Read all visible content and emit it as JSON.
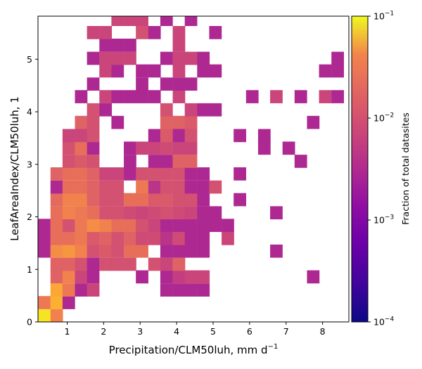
{
  "chart_data": {
    "type": "heatmap",
    "xlabel": "Precipitation/CLM50luh,  mm d",
    "xlabel_sup": "−1",
    "ylabel": "LeafAreaIndex/CLM50luh,  1",
    "xlim": [
      0.2,
      8.72
    ],
    "ylim": [
      0,
      5.82
    ],
    "bin_width": [
      0.335,
      0.245
    ],
    "x_ticks": [
      {
        "value": 1,
        "label": "1"
      },
      {
        "value": 2,
        "label": "2"
      },
      {
        "value": 3,
        "label": "3"
      },
      {
        "value": 4,
        "label": "4"
      },
      {
        "value": 5,
        "label": "5"
      },
      {
        "value": 6,
        "label": "6"
      },
      {
        "value": 7,
        "label": "7"
      },
      {
        "value": 8,
        "label": "8"
      }
    ],
    "y_ticks": [
      {
        "value": 0,
        "label": "0"
      },
      {
        "value": 1,
        "label": "1"
      },
      {
        "value": 2,
        "label": "2"
      },
      {
        "value": 3,
        "label": "3"
      },
      {
        "value": 4,
        "label": "4"
      },
      {
        "value": 5,
        "label": "5"
      }
    ],
    "colorbar": {
      "label": "Fraction of total datasites",
      "scale": "log",
      "range": [
        0.0001,
        0.1
      ],
      "colormap": "plasma",
      "ticks": [
        {
          "value": 0.0001,
          "base": "10",
          "exp": "−4"
        },
        {
          "value": 0.001,
          "base": "10",
          "exp": "−3"
        },
        {
          "value": 0.01,
          "base": "10",
          "exp": "−2"
        },
        {
          "value": 0.1,
          "base": "10",
          "exp": "−1"
        }
      ]
    },
    "cells": [
      {
        "x": 0.37,
        "y": 0.12,
        "v": 0.07
      },
      {
        "x": 0.71,
        "y": 0.12,
        "v": 0.012
      },
      {
        "x": 0.37,
        "y": 0.37,
        "v": 0.01
      },
      {
        "x": 0.71,
        "y": 0.37,
        "v": 0.03
      },
      {
        "x": 1.04,
        "y": 0.37,
        "v": 0.0015
      },
      {
        "x": 0.71,
        "y": 0.61,
        "v": 0.025
      },
      {
        "x": 1.04,
        "y": 0.61,
        "v": 0.01
      },
      {
        "x": 1.38,
        "y": 0.61,
        "v": 0.0015
      },
      {
        "x": 1.71,
        "y": 0.61,
        "v": 0.003
      },
      {
        "x": 3.72,
        "y": 0.61,
        "v": 0.0015
      },
      {
        "x": 4.06,
        "y": 0.61,
        "v": 0.0015
      },
      {
        "x": 4.39,
        "y": 0.61,
        "v": 0.0015
      },
      {
        "x": 4.73,
        "y": 0.61,
        "v": 0.0015
      },
      {
        "x": 0.71,
        "y": 0.86,
        "v": 0.006
      },
      {
        "x": 1.04,
        "y": 0.86,
        "v": 0.012
      },
      {
        "x": 1.38,
        "y": 0.86,
        "v": 0.003
      },
      {
        "x": 1.71,
        "y": 0.86,
        "v": 0.0015
      },
      {
        "x": 3.05,
        "y": 0.86,
        "v": 0.0015
      },
      {
        "x": 3.72,
        "y": 0.86,
        "v": 0.0015
      },
      {
        "x": 4.06,
        "y": 0.86,
        "v": 0.0025
      },
      {
        "x": 4.39,
        "y": 0.86,
        "v": 0.003
      },
      {
        "x": 4.73,
        "y": 0.86,
        "v": 0.003
      },
      {
        "x": 7.74,
        "y": 0.86,
        "v": 0.0015
      },
      {
        "x": 0.71,
        "y": 1.1,
        "v": 0.006
      },
      {
        "x": 1.04,
        "y": 1.1,
        "v": 0.006
      },
      {
        "x": 1.38,
        "y": 1.1,
        "v": 0.004
      },
      {
        "x": 1.71,
        "y": 1.1,
        "v": 0.0015
      },
      {
        "x": 2.05,
        "y": 1.1,
        "v": 0.004
      },
      {
        "x": 2.38,
        "y": 1.1,
        "v": 0.004
      },
      {
        "x": 2.72,
        "y": 1.1,
        "v": 0.004
      },
      {
        "x": 3.39,
        "y": 1.1,
        "v": 0.004
      },
      {
        "x": 3.72,
        "y": 1.1,
        "v": 0.003
      },
      {
        "x": 4.06,
        "y": 1.1,
        "v": 0.006
      },
      {
        "x": 0.37,
        "y": 1.35,
        "v": 0.0015
      },
      {
        "x": 0.71,
        "y": 1.35,
        "v": 0.015
      },
      {
        "x": 1.04,
        "y": 1.35,
        "v": 0.018
      },
      {
        "x": 1.38,
        "y": 1.35,
        "v": 0.012
      },
      {
        "x": 1.71,
        "y": 1.35,
        "v": 0.004
      },
      {
        "x": 2.05,
        "y": 1.35,
        "v": 0.005
      },
      {
        "x": 2.38,
        "y": 1.35,
        "v": 0.004
      },
      {
        "x": 2.72,
        "y": 1.35,
        "v": 0.008
      },
      {
        "x": 3.05,
        "y": 1.35,
        "v": 0.008
      },
      {
        "x": 3.72,
        "y": 1.35,
        "v": 0.0015
      },
      {
        "x": 4.06,
        "y": 1.35,
        "v": 0.0015
      },
      {
        "x": 4.39,
        "y": 1.35,
        "v": 0.0015
      },
      {
        "x": 4.73,
        "y": 1.35,
        "v": 0.0015
      },
      {
        "x": 6.73,
        "y": 1.35,
        "v": 0.0015
      },
      {
        "x": 0.37,
        "y": 1.59,
        "v": 0.0015
      },
      {
        "x": 0.71,
        "y": 1.59,
        "v": 0.008
      },
      {
        "x": 1.04,
        "y": 1.59,
        "v": 0.008
      },
      {
        "x": 1.38,
        "y": 1.59,
        "v": 0.01
      },
      {
        "x": 1.71,
        "y": 1.59,
        "v": 0.005
      },
      {
        "x": 2.05,
        "y": 1.59,
        "v": 0.006
      },
      {
        "x": 2.38,
        "y": 1.59,
        "v": 0.004
      },
      {
        "x": 2.72,
        "y": 1.59,
        "v": 0.006
      },
      {
        "x": 3.05,
        "y": 1.59,
        "v": 0.0035
      },
      {
        "x": 3.39,
        "y": 1.59,
        "v": 0.0035
      },
      {
        "x": 3.72,
        "y": 1.59,
        "v": 0.002
      },
      {
        "x": 4.06,
        "y": 1.59,
        "v": 0.0035
      },
      {
        "x": 4.39,
        "y": 1.59,
        "v": 0.0015
      },
      {
        "x": 4.73,
        "y": 1.59,
        "v": 0.0015
      },
      {
        "x": 5.4,
        "y": 1.59,
        "v": 0.003
      },
      {
        "x": 0.37,
        "y": 1.84,
        "v": 0.0015
      },
      {
        "x": 0.71,
        "y": 1.84,
        "v": 0.008
      },
      {
        "x": 1.04,
        "y": 1.84,
        "v": 0.004
      },
      {
        "x": 1.38,
        "y": 1.84,
        "v": 0.01
      },
      {
        "x": 1.71,
        "y": 1.84,
        "v": 0.015
      },
      {
        "x": 2.05,
        "y": 1.84,
        "v": 0.012
      },
      {
        "x": 2.38,
        "y": 1.84,
        "v": 0.008
      },
      {
        "x": 2.72,
        "y": 1.84,
        "v": 0.008
      },
      {
        "x": 3.05,
        "y": 1.84,
        "v": 0.004
      },
      {
        "x": 3.39,
        "y": 1.84,
        "v": 0.003
      },
      {
        "x": 3.72,
        "y": 1.84,
        "v": 0.0015
      },
      {
        "x": 4.06,
        "y": 1.84,
        "v": 0.0015
      },
      {
        "x": 4.39,
        "y": 1.84,
        "v": 0.0015
      },
      {
        "x": 4.73,
        "y": 1.84,
        "v": 0.0015
      },
      {
        "x": 5.06,
        "y": 1.84,
        "v": 0.0015
      },
      {
        "x": 5.4,
        "y": 1.84,
        "v": 0.0015
      },
      {
        "x": 0.71,
        "y": 2.08,
        "v": 0.008
      },
      {
        "x": 1.04,
        "y": 2.08,
        "v": 0.012
      },
      {
        "x": 1.38,
        "y": 2.08,
        "v": 0.01
      },
      {
        "x": 1.71,
        "y": 2.08,
        "v": 0.008
      },
      {
        "x": 2.05,
        "y": 2.08,
        "v": 0.004
      },
      {
        "x": 2.38,
        "y": 2.08,
        "v": 0.004
      },
      {
        "x": 2.72,
        "y": 2.08,
        "v": 0.0035
      },
      {
        "x": 3.05,
        "y": 2.08,
        "v": 0.003
      },
      {
        "x": 3.39,
        "y": 2.08,
        "v": 0.0035
      },
      {
        "x": 3.72,
        "y": 2.08,
        "v": 0.004
      },
      {
        "x": 4.06,
        "y": 2.08,
        "v": 0.0035
      },
      {
        "x": 4.39,
        "y": 2.08,
        "v": 0.003
      },
      {
        "x": 4.73,
        "y": 2.08,
        "v": 0.0015
      },
      {
        "x": 5.06,
        "y": 2.08,
        "v": 0.0015
      },
      {
        "x": 6.73,
        "y": 2.08,
        "v": 0.0015
      },
      {
        "x": 0.71,
        "y": 2.33,
        "v": 0.007
      },
      {
        "x": 1.04,
        "y": 2.33,
        "v": 0.012
      },
      {
        "x": 1.38,
        "y": 2.33,
        "v": 0.012
      },
      {
        "x": 1.71,
        "y": 2.33,
        "v": 0.006
      },
      {
        "x": 2.05,
        "y": 2.33,
        "v": 0.004
      },
      {
        "x": 2.38,
        "y": 2.33,
        "v": 0.004
      },
      {
        "x": 2.72,
        "y": 2.33,
        "v": 0.008
      },
      {
        "x": 3.05,
        "y": 2.33,
        "v": 0.008
      },
      {
        "x": 3.39,
        "y": 2.33,
        "v": 0.005
      },
      {
        "x": 3.72,
        "y": 2.33,
        "v": 0.005
      },
      {
        "x": 4.06,
        "y": 2.33,
        "v": 0.004
      },
      {
        "x": 4.39,
        "y": 2.33,
        "v": 0.004
      },
      {
        "x": 4.73,
        "y": 2.33,
        "v": 0.0015
      },
      {
        "x": 5.73,
        "y": 2.33,
        "v": 0.0015
      },
      {
        "x": 0.71,
        "y": 2.57,
        "v": 0.0015
      },
      {
        "x": 1.04,
        "y": 2.57,
        "v": 0.008
      },
      {
        "x": 1.38,
        "y": 2.57,
        "v": 0.008
      },
      {
        "x": 1.71,
        "y": 2.57,
        "v": 0.006
      },
      {
        "x": 2.05,
        "y": 2.57,
        "v": 0.004
      },
      {
        "x": 2.38,
        "y": 2.57,
        "v": 0.004
      },
      {
        "x": 3.05,
        "y": 2.57,
        "v": 0.01
      },
      {
        "x": 3.39,
        "y": 2.57,
        "v": 0.002
      },
      {
        "x": 3.72,
        "y": 2.57,
        "v": 0.004
      },
      {
        "x": 4.06,
        "y": 2.57,
        "v": 0.004
      },
      {
        "x": 4.39,
        "y": 2.57,
        "v": 0.0015
      },
      {
        "x": 4.73,
        "y": 2.57,
        "v": 0.0015
      },
      {
        "x": 5.06,
        "y": 2.57,
        "v": 0.004
      },
      {
        "x": 0.71,
        "y": 2.82,
        "v": 0.006
      },
      {
        "x": 1.04,
        "y": 2.82,
        "v": 0.008
      },
      {
        "x": 1.38,
        "y": 2.82,
        "v": 0.008
      },
      {
        "x": 1.71,
        "y": 2.82,
        "v": 0.006
      },
      {
        "x": 2.05,
        "y": 2.82,
        "v": 0.003
      },
      {
        "x": 2.38,
        "y": 2.82,
        "v": 0.003
      },
      {
        "x": 2.72,
        "y": 2.82,
        "v": 0.0015
      },
      {
        "x": 3.05,
        "y": 2.82,
        "v": 0.004
      },
      {
        "x": 3.39,
        "y": 2.82,
        "v": 0.004
      },
      {
        "x": 3.72,
        "y": 2.82,
        "v": 0.004
      },
      {
        "x": 4.06,
        "y": 2.82,
        "v": 0.004
      },
      {
        "x": 4.39,
        "y": 2.82,
        "v": 0.0015
      },
      {
        "x": 4.73,
        "y": 2.82,
        "v": 0.0015
      },
      {
        "x": 5.73,
        "y": 2.82,
        "v": 0.0015
      },
      {
        "x": 1.04,
        "y": 3.06,
        "v": 0.004
      },
      {
        "x": 1.38,
        "y": 3.06,
        "v": 0.005
      },
      {
        "x": 1.71,
        "y": 3.06,
        "v": 0.004
      },
      {
        "x": 2.72,
        "y": 3.06,
        "v": 0.0015
      },
      {
        "x": 3.39,
        "y": 3.06,
        "v": 0.0015
      },
      {
        "x": 3.72,
        "y": 3.06,
        "v": 0.0015
      },
      {
        "x": 4.06,
        "y": 3.06,
        "v": 0.006
      },
      {
        "x": 4.39,
        "y": 3.06,
        "v": 0.006
      },
      {
        "x": 7.4,
        "y": 3.06,
        "v": 0.0015
      },
      {
        "x": 1.04,
        "y": 3.31,
        "v": 0.004
      },
      {
        "x": 1.38,
        "y": 3.31,
        "v": 0.008
      },
      {
        "x": 1.71,
        "y": 3.31,
        "v": 0.0015
      },
      {
        "x": 2.72,
        "y": 3.31,
        "v": 0.0015
      },
      {
        "x": 3.05,
        "y": 3.31,
        "v": 0.003
      },
      {
        "x": 3.39,
        "y": 3.31,
        "v": 0.003
      },
      {
        "x": 3.72,
        "y": 3.31,
        "v": 0.0035
      },
      {
        "x": 4.06,
        "y": 3.31,
        "v": 0.003
      },
      {
        "x": 4.39,
        "y": 3.31,
        "v": 0.003
      },
      {
        "x": 6.4,
        "y": 3.31,
        "v": 0.0015
      },
      {
        "x": 7.07,
        "y": 3.31,
        "v": 0.0015
      },
      {
        "x": 1.04,
        "y": 3.55,
        "v": 0.003
      },
      {
        "x": 1.38,
        "y": 3.55,
        "v": 0.003
      },
      {
        "x": 1.71,
        "y": 3.55,
        "v": 0.004
      },
      {
        "x": 3.39,
        "y": 3.55,
        "v": 0.0015
      },
      {
        "x": 3.72,
        "y": 3.55,
        "v": 0.005
      },
      {
        "x": 4.06,
        "y": 3.55,
        "v": 0.0015
      },
      {
        "x": 4.39,
        "y": 3.55,
        "v": 0.004
      },
      {
        "x": 5.73,
        "y": 3.55,
        "v": 0.0015
      },
      {
        "x": 6.4,
        "y": 3.55,
        "v": 0.0015
      },
      {
        "x": 1.38,
        "y": 3.8,
        "v": 0.006
      },
      {
        "x": 1.71,
        "y": 3.8,
        "v": 0.004
      },
      {
        "x": 2.38,
        "y": 3.8,
        "v": 0.0015
      },
      {
        "x": 3.72,
        "y": 3.8,
        "v": 0.006
      },
      {
        "x": 4.06,
        "y": 3.8,
        "v": 0.006
      },
      {
        "x": 4.39,
        "y": 3.8,
        "v": 0.005
      },
      {
        "x": 7.74,
        "y": 3.8,
        "v": 0.0015
      },
      {
        "x": 1.71,
        "y": 4.04,
        "v": 0.004
      },
      {
        "x": 2.05,
        "y": 4.04,
        "v": 0.0015
      },
      {
        "x": 3.72,
        "y": 4.04,
        "v": 0.004
      },
      {
        "x": 4.39,
        "y": 4.04,
        "v": 0.003
      },
      {
        "x": 4.73,
        "y": 4.04,
        "v": 0.0015
      },
      {
        "x": 5.06,
        "y": 4.04,
        "v": 0.0015
      },
      {
        "x": 1.38,
        "y": 4.29,
        "v": 0.0015
      },
      {
        "x": 2.05,
        "y": 4.29,
        "v": 0.003
      },
      {
        "x": 2.38,
        "y": 4.29,
        "v": 0.0015
      },
      {
        "x": 2.72,
        "y": 4.29,
        "v": 0.0015
      },
      {
        "x": 3.05,
        "y": 4.29,
        "v": 0.0015
      },
      {
        "x": 3.39,
        "y": 4.29,
        "v": 0.0015
      },
      {
        "x": 4.06,
        "y": 4.29,
        "v": 0.003
      },
      {
        "x": 6.07,
        "y": 4.29,
        "v": 0.0015
      },
      {
        "x": 6.73,
        "y": 4.29,
        "v": 0.003
      },
      {
        "x": 7.4,
        "y": 4.29,
        "v": 0.0015
      },
      {
        "x": 8.07,
        "y": 4.29,
        "v": 0.003
      },
      {
        "x": 8.41,
        "y": 4.29,
        "v": 0.0015
      },
      {
        "x": 1.71,
        "y": 4.53,
        "v": 0.0015
      },
      {
        "x": 3.05,
        "y": 4.53,
        "v": 0.0015
      },
      {
        "x": 3.72,
        "y": 4.53,
        "v": 0.0015
      },
      {
        "x": 4.06,
        "y": 4.53,
        "v": 0.0015
      },
      {
        "x": 4.39,
        "y": 4.53,
        "v": 0.0015
      },
      {
        "x": 2.05,
        "y": 4.78,
        "v": 0.003
      },
      {
        "x": 2.38,
        "y": 4.78,
        "v": 0.0015
      },
      {
        "x": 3.05,
        "y": 4.78,
        "v": 0.0015
      },
      {
        "x": 3.39,
        "y": 4.78,
        "v": 0.0015
      },
      {
        "x": 4.06,
        "y": 4.78,
        "v": 0.003
      },
      {
        "x": 4.73,
        "y": 4.78,
        "v": 0.0015
      },
      {
        "x": 5.06,
        "y": 4.78,
        "v": 0.0015
      },
      {
        "x": 8.07,
        "y": 4.78,
        "v": 0.0015
      },
      {
        "x": 8.41,
        "y": 4.78,
        "v": 0.0015
      },
      {
        "x": 1.71,
        "y": 5.02,
        "v": 0.0015
      },
      {
        "x": 2.05,
        "y": 5.02,
        "v": 0.003
      },
      {
        "x": 2.38,
        "y": 5.02,
        "v": 0.003
      },
      {
        "x": 2.72,
        "y": 5.02,
        "v": 0.003
      },
      {
        "x": 3.72,
        "y": 5.02,
        "v": 0.0015
      },
      {
        "x": 4.06,
        "y": 5.02,
        "v": 0.003
      },
      {
        "x": 4.39,
        "y": 5.02,
        "v": 0.003
      },
      {
        "x": 4.73,
        "y": 5.02,
        "v": 0.0015
      },
      {
        "x": 8.41,
        "y": 5.02,
        "v": 0.0015
      },
      {
        "x": 2.05,
        "y": 5.27,
        "v": 0.0015
      },
      {
        "x": 2.38,
        "y": 5.27,
        "v": 0.0015
      },
      {
        "x": 2.72,
        "y": 5.27,
        "v": 0.0015
      },
      {
        "x": 4.06,
        "y": 5.27,
        "v": 0.003
      },
      {
        "x": 1.71,
        "y": 5.51,
        "v": 0.003
      },
      {
        "x": 2.05,
        "y": 5.51,
        "v": 0.003
      },
      {
        "x": 3.05,
        "y": 5.51,
        "v": 0.004
      },
      {
        "x": 3.39,
        "y": 5.51,
        "v": 0.0015
      },
      {
        "x": 4.06,
        "y": 5.51,
        "v": 0.003
      },
      {
        "x": 5.06,
        "y": 5.51,
        "v": 0.0015
      },
      {
        "x": 2.38,
        "y": 5.76,
        "v": 0.003
      },
      {
        "x": 2.72,
        "y": 5.76,
        "v": 0.003
      },
      {
        "x": 3.05,
        "y": 5.76,
        "v": 0.003
      },
      {
        "x": 3.72,
        "y": 5.76,
        "v": 0.0015
      },
      {
        "x": 4.39,
        "y": 5.76,
        "v": 0.0015
      },
      {
        "x": 1.71,
        "y": 6.0,
        "v": 0.0015
      },
      {
        "x": 2.05,
        "y": 6.0,
        "v": 0.0015
      },
      {
        "x": 3.05,
        "y": 6.0,
        "v": 0.0015
      },
      {
        "x": 3.39,
        "y": 6.0,
        "v": 0.0015
      },
      {
        "x": 3.72,
        "y": 6.0,
        "v": 0.003
      },
      {
        "x": 4.06,
        "y": 6.0,
        "v": 0.003
      },
      {
        "x": 4.39,
        "y": 6.0,
        "v": 0.0015
      },
      {
        "x": 5.06,
        "y": 6.0,
        "v": 0.0015
      },
      {
        "x": 7.07,
        "y": 6.0,
        "v": 0.0015
      }
    ]
  }
}
